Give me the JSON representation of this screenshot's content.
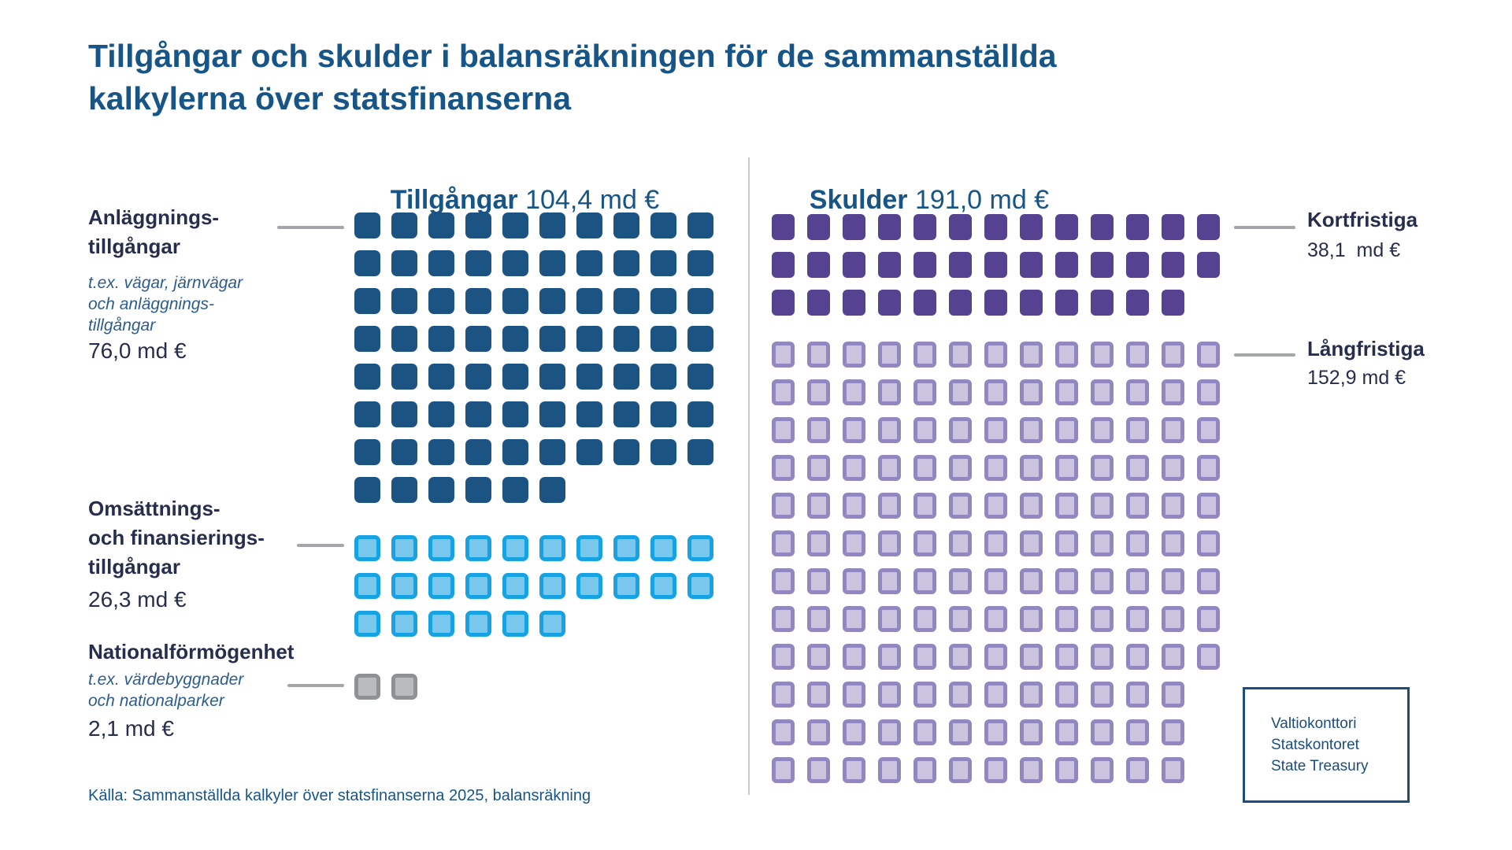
{
  "title": {
    "line1": "Tillgångar och skulder i balansräkningen för de sammanställda",
    "line2": "kalkylerna över statsfinanserna"
  },
  "assets_section": {
    "header_label": "Tillgångar",
    "header_amount": " 104,4 md €",
    "groups": [
      {
        "name": "Anläggningstillgångar",
        "label_lines": [
          "Anläggnings-",
          "tillgångar"
        ],
        "description_lines": [
          "t.ex. vägar, järnvägar",
          "och anläggnings-",
          "tillgångar"
        ],
        "amount": "76,0 md €",
        "value_md_eur": 76.0,
        "rows": [
          10,
          10,
          10,
          10,
          10,
          10,
          10,
          6
        ],
        "fill": "#1b5383",
        "border": "#1b5383"
      },
      {
        "name": "Omsättnings- och finansieringstillgångar",
        "label_lines": [
          "Omsättnings-",
          "och finansierings-",
          "tillgångar"
        ],
        "description_lines": [],
        "amount": "26,3 md €",
        "value_md_eur": 26.3,
        "rows": [
          10,
          10,
          6
        ],
        "fill": "#7ac7ed",
        "border": "#16a3e3"
      },
      {
        "name": "Nationalförmögenhet",
        "label_lines": [
          "Nationalförmögenhet"
        ],
        "description_lines": [
          "t.ex. värdebyggnader",
          "och nationalparker"
        ],
        "amount": "2,1 md €",
        "value_md_eur": 2.1,
        "rows": [
          2
        ],
        "fill": "#b9bcbf",
        "border": "#8e9295"
      }
    ]
  },
  "liabilities_section": {
    "header_label": "Skulder",
    "header_amount": " 191,0 md €",
    "groups": [
      {
        "name": "Kortfristiga",
        "label": "Kortfristiga",
        "amount": "38,1  md €",
        "value_md_eur": 38.1,
        "rows": [
          13,
          13,
          12
        ],
        "fill": "#554291",
        "border": "#554291"
      },
      {
        "name": "Långfristiga",
        "label": "Långfristiga",
        "amount": "152,9 md €",
        "value_md_eur": 152.9,
        "rows": [
          13,
          13,
          13,
          13,
          13,
          13,
          13,
          13,
          13,
          12,
          12,
          12
        ],
        "fill": "#cbc4df",
        "border": "#9287be"
      }
    ]
  },
  "source": "Källa: Sammanställda kalkyler över statsfinanserna 2025, balansräkning",
  "logo_box": {
    "lines": [
      "Valtiokonttori",
      "Statskontoret",
      "State Treasury"
    ]
  },
  "colors": {
    "brand_blue_text": "#185587",
    "navy_text": "#272d4d",
    "description_blue": "#2d5c8e",
    "asset_fixed": "#1b5383",
    "asset_current_fill": "#7ac7ed",
    "asset_current_border": "#16a3e3",
    "national_fill": "#b9bcbf",
    "national_border": "#8e9295",
    "liability_short": "#554291",
    "liability_long_fill": "#cbc4df",
    "liability_long_border": "#9287be",
    "connector_gray": "#a4a6a9",
    "divider_gray": "#c8cacc",
    "logo_navy": "#1b4d80"
  },
  "chart_data": {
    "type": "bar",
    "subtype": "waffle-pictogram",
    "unit": "md €",
    "square_value": 1,
    "title": "Tillgångar och skulder i balansräkningen för de sammanställda kalkylerna över statsfinanserna",
    "series": [
      {
        "name": "Tillgångar",
        "total": 104.4,
        "items": [
          {
            "label": "Anläggningstillgångar",
            "value": 76.0,
            "squares": 76
          },
          {
            "label": "Omsättnings- och finansieringstillgångar",
            "value": 26.3,
            "squares": 26
          },
          {
            "label": "Nationalförmögenhet",
            "value": 2.1,
            "squares": 2
          }
        ]
      },
      {
        "name": "Skulder",
        "total": 191.0,
        "items": [
          {
            "label": "Kortfristiga",
            "value": 38.1,
            "squares": 38
          },
          {
            "label": "Långfristiga",
            "value": 152.9,
            "squares": 153
          }
        ]
      }
    ],
    "source": "Källa: Sammanställda kalkyler över statsfinanserna 2025, balansräkning",
    "legend_position": "side-labels"
  }
}
